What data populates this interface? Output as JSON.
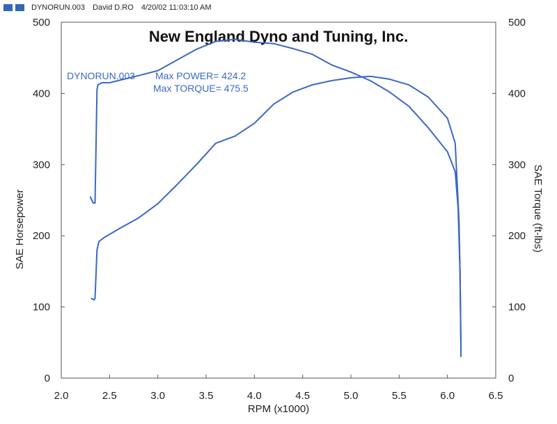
{
  "header": {
    "filename": "DYNORUN.003",
    "user": "David D.RO",
    "timestamp": "4/20/02 11:03:10 AM"
  },
  "chart_data": {
    "type": "line",
    "title": "New England Dyno and Tuning, Inc.",
    "xlabel": "RPM (x1000)",
    "ylabel": "SAE Horsepower",
    "y2label": "SAE Torque (ft-lbs)",
    "xlim": [
      2.0,
      6.5
    ],
    "ylim": [
      0,
      500
    ],
    "y2lim": [
      0,
      500
    ],
    "x_ticks": [
      "2.0",
      "2.5",
      "3.0",
      "3.5",
      "4.0",
      "4.5",
      "5.0",
      "5.5",
      "6.0",
      "6.5"
    ],
    "y_ticks": [
      "0",
      "100",
      "200",
      "300",
      "400",
      "500"
    ],
    "y2_ticks": [
      "0",
      "100",
      "200",
      "300",
      "400",
      "500"
    ],
    "annotation": {
      "run": "DYNORUN.003",
      "max_power": "Max POWER= 424.2",
      "max_torque": "Max TORQUE= 475.5"
    },
    "grid": false,
    "line_color": "#3a68c4",
    "series": [
      {
        "axis": "left",
        "x": [
          2.31,
          2.34,
          2.35,
          2.37,
          2.39,
          2.45,
          2.6,
          2.8,
          3.0,
          3.2,
          3.4,
          3.6,
          3.8,
          4.0,
          4.2,
          4.4,
          4.6,
          4.8,
          5.0,
          5.2,
          5.4,
          5.6,
          5.8,
          6.0,
          6.08,
          6.12,
          6.13,
          6.14
        ],
        "y": [
          112,
          110,
          112,
          180,
          192,
          198,
          210,
          225,
          245,
          272,
          300,
          330,
          340,
          358,
          385,
          402,
          412,
          418,
          422,
          424,
          420,
          412,
          395,
          365,
          330,
          220,
          150,
          40
        ]
      },
      {
        "axis": "right",
        "x": [
          2.3,
          2.33,
          2.35,
          2.37,
          2.38,
          2.42,
          2.5,
          2.8,
          3.0,
          3.2,
          3.4,
          3.6,
          3.8,
          4.0,
          4.2,
          4.4,
          4.6,
          4.8,
          5.0,
          5.2,
          5.4,
          5.6,
          5.8,
          6.0,
          6.08,
          6.11,
          6.13,
          6.14
        ],
        "y": [
          255,
          246,
          246,
          405,
          412,
          415,
          415,
          425,
          432,
          447,
          462,
          473,
          476,
          472,
          470,
          463,
          455,
          440,
          430,
          418,
          402,
          382,
          352,
          318,
          290,
          240,
          150,
          30
        ]
      }
    ]
  }
}
